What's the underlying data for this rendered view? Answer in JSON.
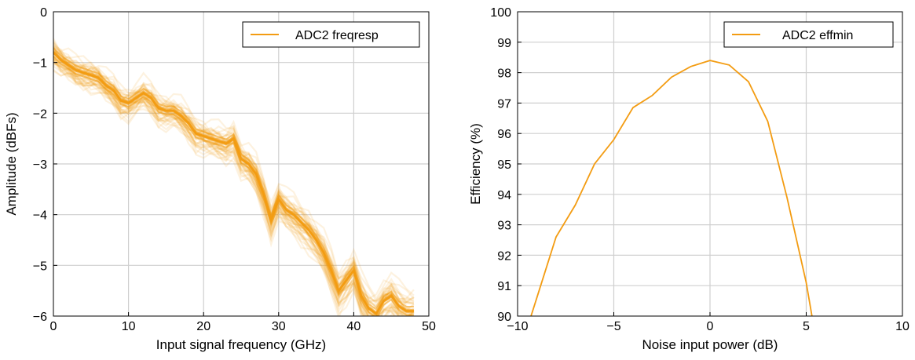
{
  "chart_data": [
    {
      "type": "line",
      "xlabel": "Input signal frequency (GHz)",
      "ylabel": "Amplitude (dBFs)",
      "xlim": [
        0,
        50
      ],
      "ylim": [
        -6,
        0
      ],
      "xticks": [
        0,
        10,
        20,
        30,
        40,
        50
      ],
      "yticks": [
        -6,
        -5,
        -4,
        -3,
        -2,
        -1,
        0
      ],
      "xtick_labels": [
        "0",
        "10",
        "20",
        "30",
        "40",
        "50"
      ],
      "ytick_labels": [
        "−6",
        "−5",
        "−4",
        "−3",
        "−2",
        "−1",
        "0"
      ],
      "grid": true,
      "legend": "top-right",
      "color": "#F39C12",
      "series": [
        {
          "name": "ADC2 freqresp",
          "ensemble": "many overlapping translucent traces around the mean curve",
          "x": [
            0,
            1,
            2,
            3,
            4,
            5,
            6,
            7,
            8,
            9,
            10,
            11,
            12,
            13,
            14,
            15,
            16,
            17,
            18,
            19,
            20,
            21,
            22,
            23,
            24,
            25,
            26,
            27,
            28,
            29,
            30,
            31,
            32,
            33,
            34,
            35,
            36,
            37,
            38,
            39,
            40,
            41,
            42,
            43,
            44,
            45,
            46,
            47,
            48
          ],
          "y": [
            -0.8,
            -0.95,
            -1.05,
            -1.15,
            -1.2,
            -1.25,
            -1.3,
            -1.45,
            -1.55,
            -1.75,
            -1.8,
            -1.7,
            -1.6,
            -1.7,
            -1.9,
            -1.95,
            -1.95,
            -2.05,
            -2.2,
            -2.4,
            -2.45,
            -2.5,
            -2.55,
            -2.6,
            -2.5,
            -2.9,
            -3.0,
            -3.2,
            -3.6,
            -4.1,
            -3.7,
            -3.9,
            -4.0,
            -4.15,
            -4.3,
            -4.5,
            -4.75,
            -5.1,
            -5.5,
            -5.3,
            -5.1,
            -5.6,
            -5.85,
            -5.95,
            -5.7,
            -5.6,
            -5.8,
            -5.9,
            -5.9
          ]
        }
      ]
    },
    {
      "type": "line",
      "xlabel": "Noise input power (dB)",
      "ylabel": "Efficiency (%)",
      "xlim": [
        -10,
        10
      ],
      "ylim": [
        90,
        100
      ],
      "xticks": [
        -10,
        -5,
        0,
        5,
        10
      ],
      "yticks": [
        90,
        91,
        92,
        93,
        94,
        95,
        96,
        97,
        98,
        99,
        100
      ],
      "xtick_labels": [
        "−10",
        "−5",
        "0",
        "5",
        "10"
      ],
      "ytick_labels": [
        "90",
        "91",
        "92",
        "93",
        "94",
        "95",
        "96",
        "97",
        "98",
        "99",
        "100"
      ],
      "grid": true,
      "legend": "top-right",
      "color": "#F39C12",
      "series": [
        {
          "name": "ADC2 effmin",
          "x": [
            -9.3,
            -9.0,
            -8.0,
            -7.0,
            -6.0,
            -5.0,
            -4.0,
            -3.0,
            -2.0,
            -1.0,
            0.0,
            1.0,
            2.0,
            3.0,
            4.0,
            5.0,
            5.3
          ],
          "y": [
            90.0,
            90.6,
            92.6,
            93.65,
            95.0,
            95.8,
            96.85,
            97.25,
            97.85,
            98.2,
            98.4,
            98.25,
            97.7,
            96.4,
            93.9,
            91.1,
            90.0
          ]
        }
      ]
    }
  ]
}
